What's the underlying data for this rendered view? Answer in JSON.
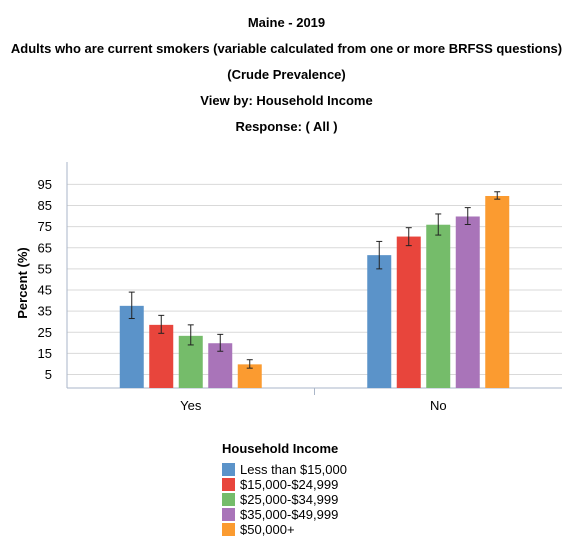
{
  "titles": [
    "Maine - 2019",
    "Adults who are current smokers (variable calculated from one or more BRFSS questions)",
    "(Crude Prevalence)",
    "View by: Household Income",
    "Response: ( All )"
  ],
  "chart_data": {
    "type": "bar",
    "categories": [
      "Yes",
      "No"
    ],
    "ylabel": "Percent (%)",
    "ylim": [
      0,
      95
    ],
    "yticks": [
      5,
      15,
      25,
      35,
      45,
      55,
      65,
      75,
      85,
      95
    ],
    "grid": true,
    "legend_title": "Household Income",
    "legend_placement": "bottom",
    "series": [
      {
        "name": "Less than $15,000",
        "color": "#5b93c9",
        "values": [
          37.5,
          61.5
        ],
        "err_low": [
          31.5,
          55.0
        ],
        "err_high": [
          44.0,
          68.0
        ]
      },
      {
        "name": "$15,000-$24,999",
        "color": "#e8453c",
        "values": [
          28.5,
          70.3
        ],
        "err_low": [
          24.5,
          66.0
        ],
        "err_high": [
          33.0,
          74.5
        ]
      },
      {
        "name": "$25,000-$34,999",
        "color": "#75bc6a",
        "values": [
          23.3,
          75.9
        ],
        "err_low": [
          19.0,
          71.0
        ],
        "err_high": [
          28.5,
          81.0
        ]
      },
      {
        "name": "$35,000-$49,999",
        "color": "#a974b9",
        "values": [
          19.8,
          79.8
        ],
        "err_low": [
          16.0,
          76.0
        ],
        "err_high": [
          24.0,
          84.0
        ]
      },
      {
        "name": "$50,000+",
        "color": "#fb9b30",
        "values": [
          9.8,
          89.5
        ],
        "err_low": [
          8.0,
          88.0
        ],
        "err_high": [
          12.0,
          91.5
        ]
      }
    ]
  }
}
